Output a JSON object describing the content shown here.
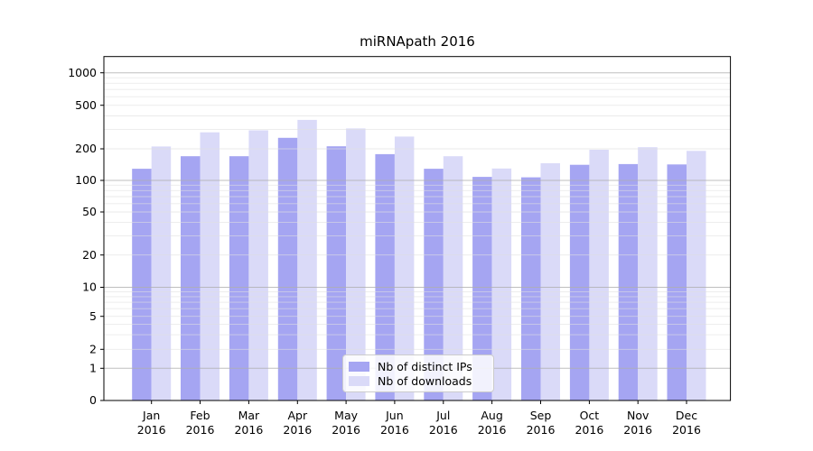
{
  "chart_data": {
    "type": "bar",
    "title": "miRNApath 2016",
    "categories": [
      "Jan",
      "Feb",
      "Mar",
      "Apr",
      "May",
      "Jun",
      "Jul",
      "Aug",
      "Sep",
      "Oct",
      "Nov",
      "Dec"
    ],
    "category_year": "2016",
    "series": [
      {
        "name": "Nb of distinct IPs",
        "color": "#a5a5f2",
        "values": [
          129,
          170,
          170,
          252,
          211,
          178,
          129,
          108,
          107,
          141,
          143,
          142
        ]
      },
      {
        "name": "Nb of downloads",
        "color": "#dadaf8",
        "values": [
          210,
          283,
          295,
          368,
          307,
          259,
          170,
          130,
          146,
          196,
          207,
          191
        ]
      }
    ],
    "yscale": "log-with-zero",
    "y_tick_labels": [
      0,
      1,
      2,
      5,
      10,
      20,
      50,
      100,
      200,
      500,
      1000
    ],
    "y_major_gridlines": [
      1,
      10,
      100,
      1000
    ],
    "ylim": [
      0,
      1420
    ],
    "grid": true,
    "legend_position": "lower center",
    "colors": {
      "grid_major": "#b0b0b0",
      "grid_minor": "#e0e0e0",
      "axis": "#000000",
      "text": "#000000",
      "background": "#ffffff"
    }
  }
}
